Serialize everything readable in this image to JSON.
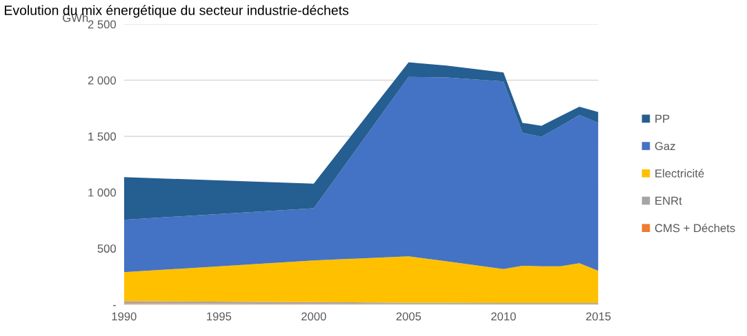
{
  "chart_data": {
    "type": "area",
    "title": "Evolution du mix énergétique du secteur industrie-déchets",
    "ylabel": "GWh",
    "x": [
      1990,
      2000,
      2005,
      2007,
      2010,
      2011,
      2012,
      2013,
      2014,
      2015
    ],
    "stacked": true,
    "series": [
      {
        "name": "CMS + Déchets",
        "color": "#ed7d31",
        "values": [
          12,
          6,
          3,
          2,
          1,
          1,
          1,
          1,
          1,
          1
        ]
      },
      {
        "name": "ENRt",
        "color": "#a5a5a5",
        "values": [
          18,
          15,
          12,
          12,
          12,
          12,
          12,
          12,
          12,
          12
        ]
      },
      {
        "name": "Electricité",
        "color": "#ffc000",
        "values": [
          258,
          371,
          415,
          370,
          302,
          332,
          327,
          327,
          355,
          287
        ]
      },
      {
        "name": "Gaz",
        "color": "#4472c4",
        "values": [
          467,
          466,
          1600,
          1641,
          1675,
          1185,
          1157,
          1250,
          1322,
          1320
        ]
      },
      {
        "name": "PP",
        "color": "#255e91",
        "values": [
          380,
          220,
          130,
          105,
          80,
          90,
          96,
          90,
          73,
          96
        ]
      }
    ],
    "xlim": [
      1990,
      2015
    ],
    "xticks": [
      1990,
      1995,
      2000,
      2005,
      2010,
      2015
    ],
    "ylim": [
      0,
      2500
    ],
    "yticks": [
      {
        "value": 0,
        "label": "-"
      },
      {
        "value": 500,
        "label": "500"
      },
      {
        "value": 1000,
        "label": "1 000"
      },
      {
        "value": 1500,
        "label": "1 500"
      },
      {
        "value": 2000,
        "label": "2 000"
      },
      {
        "value": 2500,
        "label": "2 500"
      }
    ],
    "grid": "y",
    "legend": "right"
  }
}
